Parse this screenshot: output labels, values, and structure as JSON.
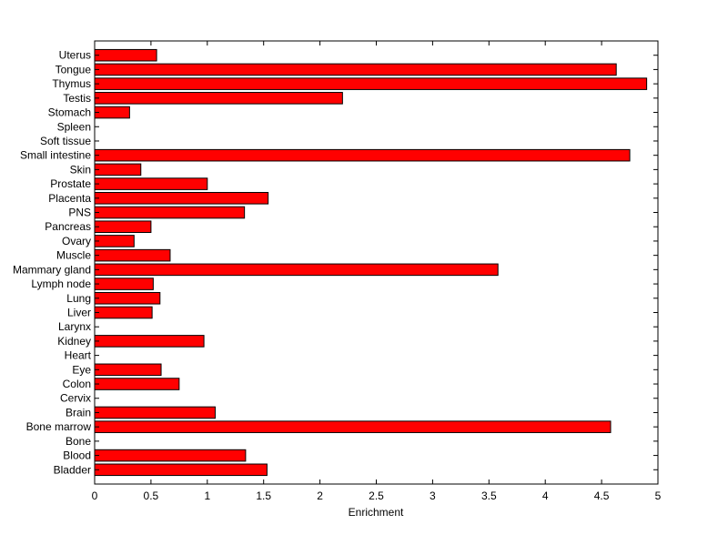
{
  "chart_data": {
    "type": "bar",
    "orientation": "horizontal",
    "xlabel": "Enrichment",
    "xlim": [
      0,
      5
    ],
    "xticks": [
      "0",
      "0.5",
      "1",
      "1.5",
      "2",
      "2.5",
      "3",
      "3.5",
      "4",
      "4.5",
      "5"
    ],
    "categories": [
      "Bladder",
      "Blood",
      "Bone",
      "Bone marrow",
      "Brain",
      "Cervix",
      "Colon",
      "Eye",
      "Heart",
      "Kidney",
      "Larynx",
      "Liver",
      "Lung",
      "Lymph node",
      "Mammary gland",
      "Muscle",
      "Ovary",
      "Pancreas",
      "PNS",
      "Placenta",
      "Prostate",
      "Skin",
      "Small intestine",
      "Soft tissue",
      "Spleen",
      "Stomach",
      "Testis",
      "Thymus",
      "Tongue",
      "Uterus"
    ],
    "values": [
      1.53,
      1.34,
      0,
      4.58,
      1.07,
      0,
      0.75,
      0.59,
      0,
      0.97,
      0,
      0.51,
      0.58,
      0.52,
      3.58,
      0.67,
      0.35,
      0.5,
      1.33,
      1.54,
      1.0,
      0.41,
      4.75,
      0,
      0,
      0.31,
      2.2,
      4.9,
      4.63,
      0.55
    ],
    "bar_color": "#ff0000",
    "grid": false,
    "legend": "none"
  }
}
